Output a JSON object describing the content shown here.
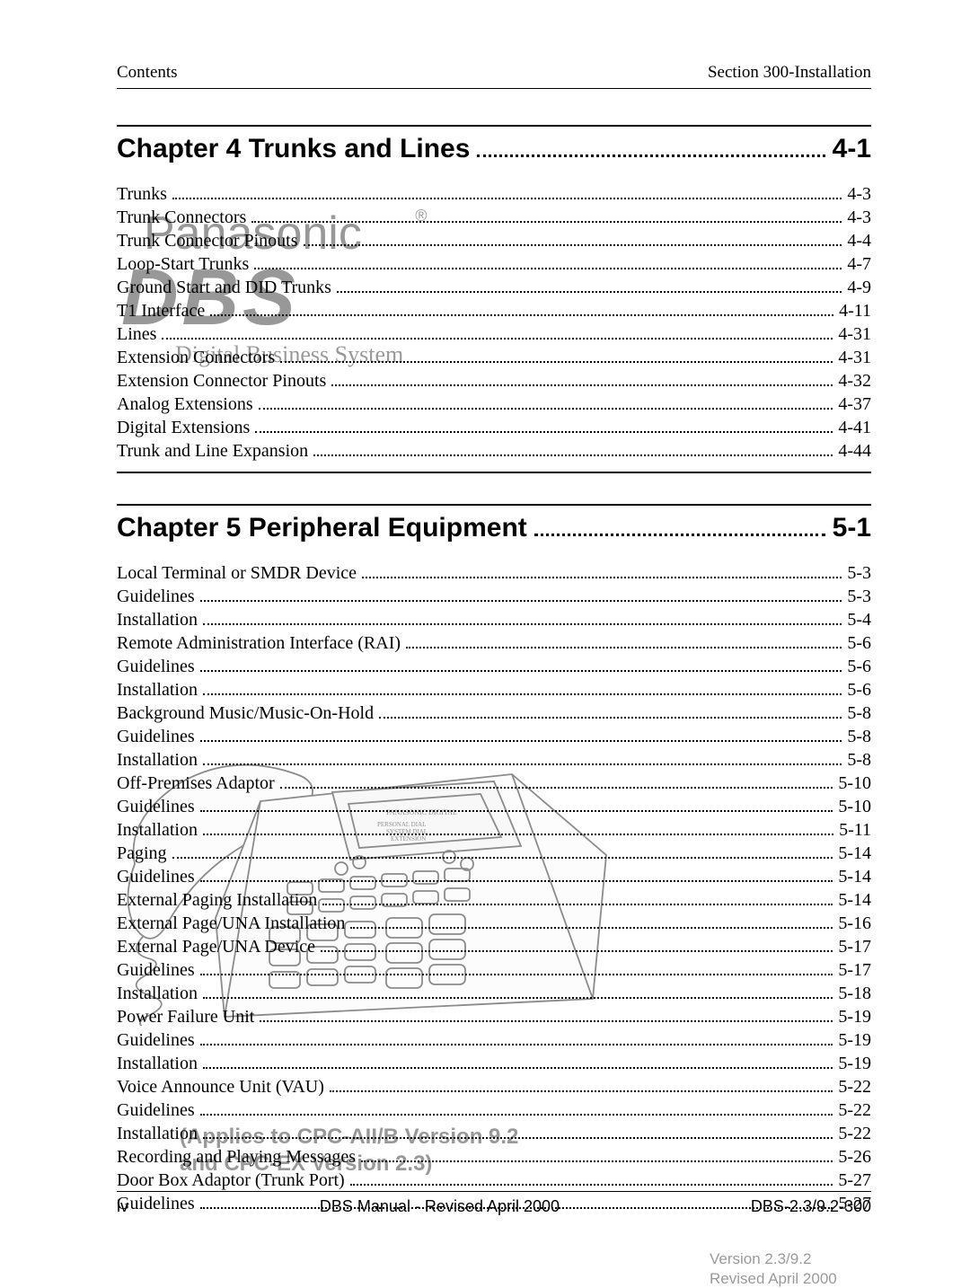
{
  "header": {
    "left": "Contents",
    "right": "Section 300-Installation"
  },
  "chapters": [
    {
      "title": "Chapter 4  Trunks and Lines",
      "page": "4-1",
      "entries": [
        {
          "label": "Trunks",
          "page": "4-3"
        },
        {
          "label": "Trunk Connectors",
          "page": "4-3"
        },
        {
          "label": "Trunk Connector Pinouts",
          "page": "4-4"
        },
        {
          "label": "Loop-Start Trunks",
          "page": "4-7"
        },
        {
          "label": "Ground Start and DID Trunks",
          "page": "4-9"
        },
        {
          "label": "T1 Interface",
          "page": "4-11"
        },
        {
          "label": "Lines",
          "page": "4-31"
        },
        {
          "label": "Extension Connectors",
          "page": "4-31"
        },
        {
          "label": "Extension Connector Pinouts",
          "page": "4-32"
        },
        {
          "label": "Analog Extensions",
          "page": "4-37"
        },
        {
          "label": "Digital Extensions",
          "page": "4-41"
        },
        {
          "label": "Trunk and Line Expansion",
          "page": "4-44"
        }
      ]
    },
    {
      "title": "Chapter 5  Peripheral Equipment",
      "page": "5-1",
      "entries": [
        {
          "label": "Local Terminal or SMDR Device",
          "page": "5-3"
        },
        {
          "label": "Guidelines",
          "page": "5-3"
        },
        {
          "label": "Installation",
          "page": "5-4"
        },
        {
          "label": "Remote Administration Interface (RAI)",
          "page": "5-6"
        },
        {
          "label": "Guidelines",
          "page": "5-6"
        },
        {
          "label": "Installation",
          "page": "5-6"
        },
        {
          "label": "Background Music/Music-On-Hold",
          "page": "5-8"
        },
        {
          "label": "Guidelines",
          "page": "5-8"
        },
        {
          "label": "Installation",
          "page": "5-8"
        },
        {
          "label": "Off-Premises Adaptor",
          "page": "5-10"
        },
        {
          "label": "Guidelines",
          "page": "5-10"
        },
        {
          "label": "Installation",
          "page": "5-11"
        },
        {
          "label": "Paging",
          "page": "5-14"
        },
        {
          "label": "Guidelines",
          "page": "5-14"
        },
        {
          "label": "External Paging Installation",
          "page": "5-14"
        },
        {
          "label": "External Page/UNA Installation",
          "page": "5-16"
        },
        {
          "label": "External Page/UNA Device",
          "page": "5-17"
        },
        {
          "label": "Guidelines",
          "page": "5-17"
        },
        {
          "label": "Installation",
          "page": "5-18"
        },
        {
          "label": "Power Failure Unit",
          "page": "5-19"
        },
        {
          "label": "Guidelines",
          "page": "5-19"
        },
        {
          "label": "Installation",
          "page": "5-19"
        },
        {
          "label": "Voice Announce Unit (VAU)",
          "page": "5-22"
        },
        {
          "label": "Guidelines",
          "page": "5-22"
        },
        {
          "label": "Installation",
          "page": "5-22"
        },
        {
          "label": "Recording and Playing Messages",
          "page": "5-26"
        },
        {
          "label": "Door Box Adaptor (Trunk Port)",
          "page": "5-27"
        },
        {
          "label": "Guidelines",
          "page": "5-27"
        }
      ]
    }
  ],
  "watermarks": {
    "brand": "Panasonic",
    "trademark": "®",
    "dbs": "DBS",
    "subtitle": "Digital Business System",
    "applies_line1": "(Applies to CPC-AII/B Version 9.2",
    "applies_line2": "and CPC-EX Version 2.3)",
    "version": "Version 2.3/9.2",
    "revised": "Revised April 2000"
  },
  "footer": {
    "left": "iv",
    "center": "DBS Manual - Revised April 2000",
    "right": "DBS-2.3/9.2-300"
  },
  "colors": {
    "text": "#000000",
    "background": "#ffffff",
    "watermark_opacity": 0.4
  },
  "fonts": {
    "body": "Times New Roman",
    "heading": "Arial"
  }
}
